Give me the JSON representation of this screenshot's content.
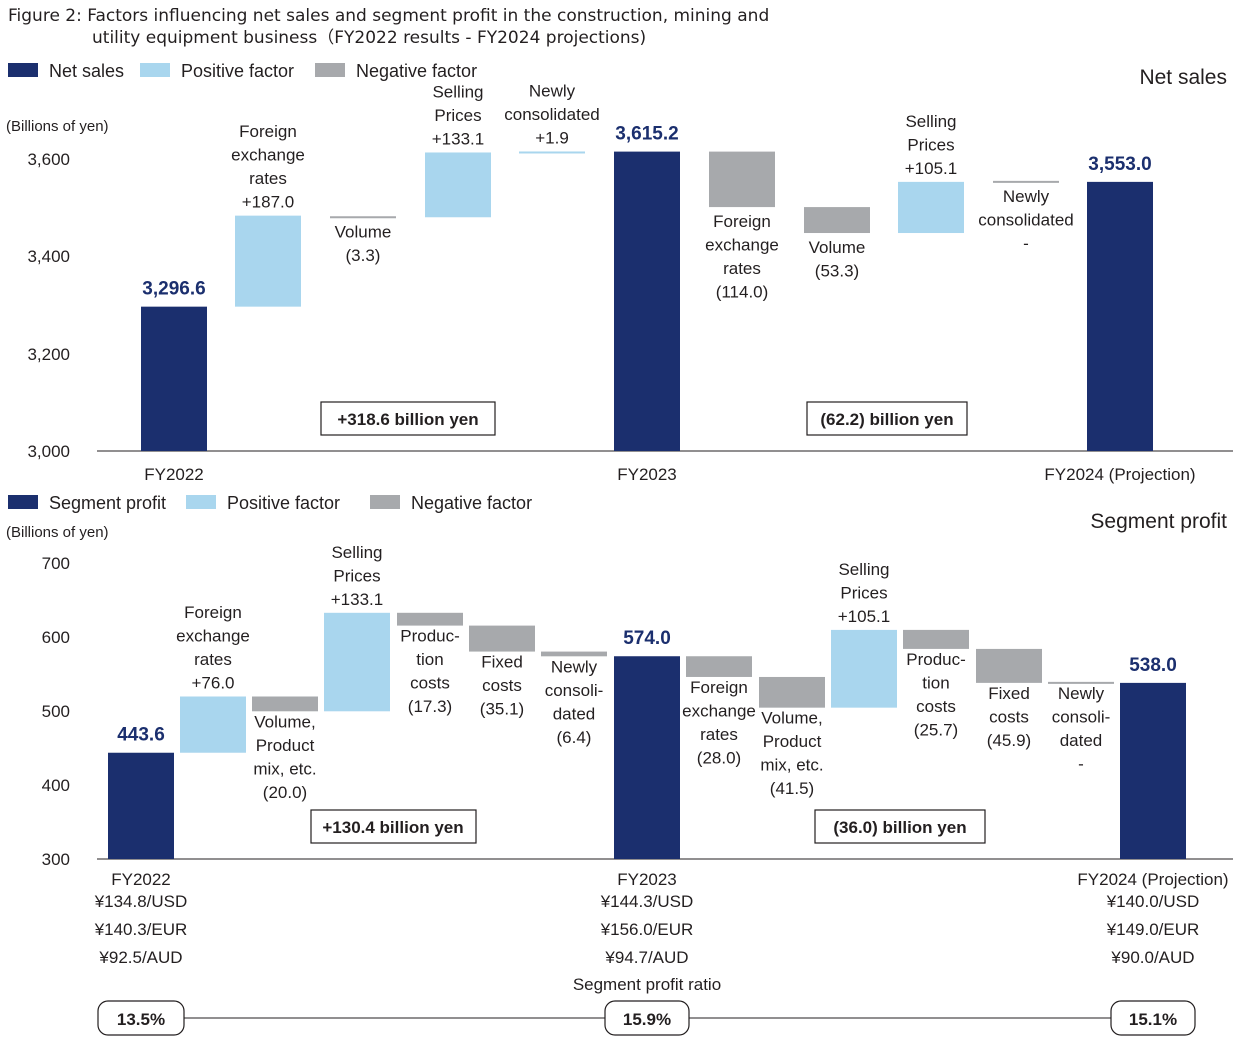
{
  "figure_title": [
    "Figure 2: Factors influencing net sales and segment profit in the construction, mining and",
    "utility equipment business（FY2022 results - FY2024 projections)"
  ],
  "colors": {
    "total": "#1b2f6e",
    "positive": "#a9d6ee",
    "negative": "#a7a9ac"
  },
  "chart_data": [
    {
      "type": "bar",
      "subtype": "waterfall",
      "title": "Net sales",
      "unit_label": "(Billions of yen)",
      "legend": [
        "Net sales",
        "Positive factor",
        "Negative factor"
      ],
      "yticks": [
        "3,600",
        "3,400",
        "3,200",
        "3,000"
      ],
      "ylim": [
        3000,
        3600
      ],
      "steps": [
        {
          "kind": "total",
          "label": [],
          "value_label": "3,296.6",
          "value": 3296.6,
          "category": "FY2022"
        },
        {
          "kind": "positive",
          "label": [
            "Foreign",
            "exchange",
            "rates",
            "+187.0"
          ],
          "value": 187.0
        },
        {
          "kind": "negative",
          "label": [
            "Volume",
            "(3.3)"
          ],
          "value": -3.3
        },
        {
          "kind": "positive",
          "label": [
            "Selling",
            "Prices",
            "+133.1"
          ],
          "value": 133.1
        },
        {
          "kind": "positive",
          "label": [
            "Newly",
            "consolidated",
            "+1.9"
          ],
          "value": 1.9
        },
        {
          "kind": "total",
          "label": [],
          "value_label": "3,615.2",
          "value": 3615.2,
          "category": "FY2023"
        },
        {
          "kind": "negative",
          "label": [
            "Foreign",
            "exchange",
            "rates",
            "(114.0)"
          ],
          "value": -114.0
        },
        {
          "kind": "negative",
          "label": [
            "Volume",
            "(53.3)"
          ],
          "value": -53.3
        },
        {
          "kind": "positive",
          "label": [
            "Selling",
            "Prices",
            "+105.1"
          ],
          "value": 105.1
        },
        {
          "kind": "negative",
          "label": [
            "Newly",
            "consolidated",
            "-"
          ],
          "value": 0
        },
        {
          "kind": "total",
          "label": [],
          "value_label": "3,553.0",
          "value": 3553.0,
          "category": "FY2024 (Projection)"
        }
      ],
      "change_boxes": [
        "+318.6 billion yen",
        "(62.2) billion yen"
      ]
    },
    {
      "type": "bar",
      "subtype": "waterfall",
      "title": "Segment profit",
      "unit_label": "(Billions of yen)",
      "legend": [
        "Segment profit",
        "Positive factor",
        "Negative factor"
      ],
      "yticks": [
        "700",
        "600",
        "500",
        "400",
        "300"
      ],
      "ylim": [
        300,
        700
      ],
      "steps": [
        {
          "kind": "total",
          "label": [],
          "value_label": "443.6",
          "value": 443.6,
          "category": "FY2022"
        },
        {
          "kind": "positive",
          "label": [
            "Foreign",
            "exchange",
            "rates",
            "+76.0"
          ],
          "value": 76.0
        },
        {
          "kind": "negative",
          "label": [
            "Volume,",
            "Product",
            "mix, etc.",
            "(20.0)"
          ],
          "value": -20.0
        },
        {
          "kind": "positive",
          "label": [
            "Selling",
            "Prices",
            "+133.1"
          ],
          "value": 133.1
        },
        {
          "kind": "negative",
          "label": [
            "Produc-",
            "tion",
            "costs",
            "(17.3)"
          ],
          "value": -17.3
        },
        {
          "kind": "negative",
          "label": [
            "Fixed",
            "costs",
            "(35.1)"
          ],
          "value": -35.1
        },
        {
          "kind": "negative",
          "label": [
            "Newly",
            "consoli-",
            "dated",
            "(6.4)"
          ],
          "value": -6.4
        },
        {
          "kind": "total",
          "label": [],
          "value_label": "574.0",
          "value": 574.0,
          "category": "FY2023"
        },
        {
          "kind": "negative",
          "label": [
            "Foreign",
            "exchange",
            "rates",
            "(28.0)"
          ],
          "value": -28.0
        },
        {
          "kind": "negative",
          "label": [
            "Volume,",
            "Product",
            "mix, etc.",
            "(41.5)"
          ],
          "value": -41.5
        },
        {
          "kind": "positive",
          "label": [
            "Selling",
            "Prices",
            "+105.1"
          ],
          "value": 105.1
        },
        {
          "kind": "negative",
          "label": [
            "Produc-",
            "tion",
            "costs",
            "(25.7)"
          ],
          "value": -25.7
        },
        {
          "kind": "negative",
          "label": [
            "Fixed",
            "costs",
            "(45.9)"
          ],
          "value": -45.9
        },
        {
          "kind": "negative",
          "label": [
            "Newly",
            "consoli-",
            "dated",
            "-"
          ],
          "value": 0
        },
        {
          "kind": "total",
          "label": [],
          "value_label": "538.0",
          "value": 538.0,
          "category": "FY2024 (Projection)"
        }
      ],
      "change_boxes": [
        "+130.4 billion yen",
        "(36.0) billion yen"
      ],
      "exchange_rates": [
        [
          "¥134.8/USD",
          "¥140.3/EUR",
          "¥92.5/AUD"
        ],
        [
          "¥144.3/USD",
          "¥156.0/EUR",
          "¥94.7/AUD"
        ],
        [
          "¥140.0/USD",
          "¥149.0/EUR",
          "¥90.0/AUD"
        ]
      ],
      "profit_ratio_label": "Segment profit ratio",
      "profit_ratios": [
        "13.5%",
        "15.9%",
        "15.1%"
      ]
    }
  ]
}
